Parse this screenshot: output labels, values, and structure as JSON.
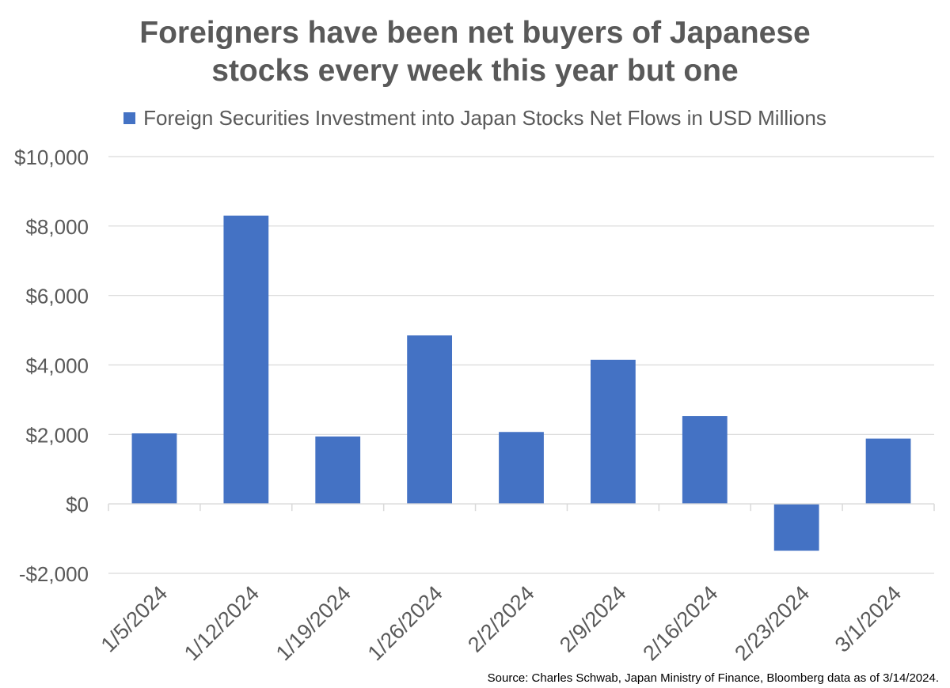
{
  "title_line1": "Foreigners have been net buyers of Japanese",
  "title_line2": "stocks every week this year but one",
  "source": "Source: Charles Schwab, Japan Ministry of Finance, Bloomberg data as of 3/14/2024.",
  "colors": {
    "bar": "#4472C4",
    "grid": "#D9D9D9",
    "text": "#595959"
  },
  "chart_data": {
    "type": "bar",
    "title": "Foreigners have been net buyers of Japanese stocks every week this year but one",
    "categories": [
      "1/5/2024",
      "1/12/2024",
      "1/19/2024",
      "1/26/2024",
      "2/2/2024",
      "2/9/2024",
      "2/16/2024",
      "2/23/2024",
      "3/1/2024"
    ],
    "series": [
      {
        "name": "Foreign Securities Investment into Japan Stocks Net Flows in USD Millions",
        "values": [
          2030,
          8300,
          1940,
          4850,
          2070,
          4150,
          2530,
          -1350,
          1880
        ]
      }
    ],
    "ylim": [
      -2000,
      10000
    ],
    "yticks": [
      10000,
      8000,
      6000,
      4000,
      2000,
      0,
      -2000
    ],
    "ytick_labels": [
      "$10,000",
      "$8,000",
      "$6,000",
      "$4,000",
      "$2,000",
      "$0",
      "-$2,000"
    ],
    "grid": true,
    "legend": "top"
  }
}
